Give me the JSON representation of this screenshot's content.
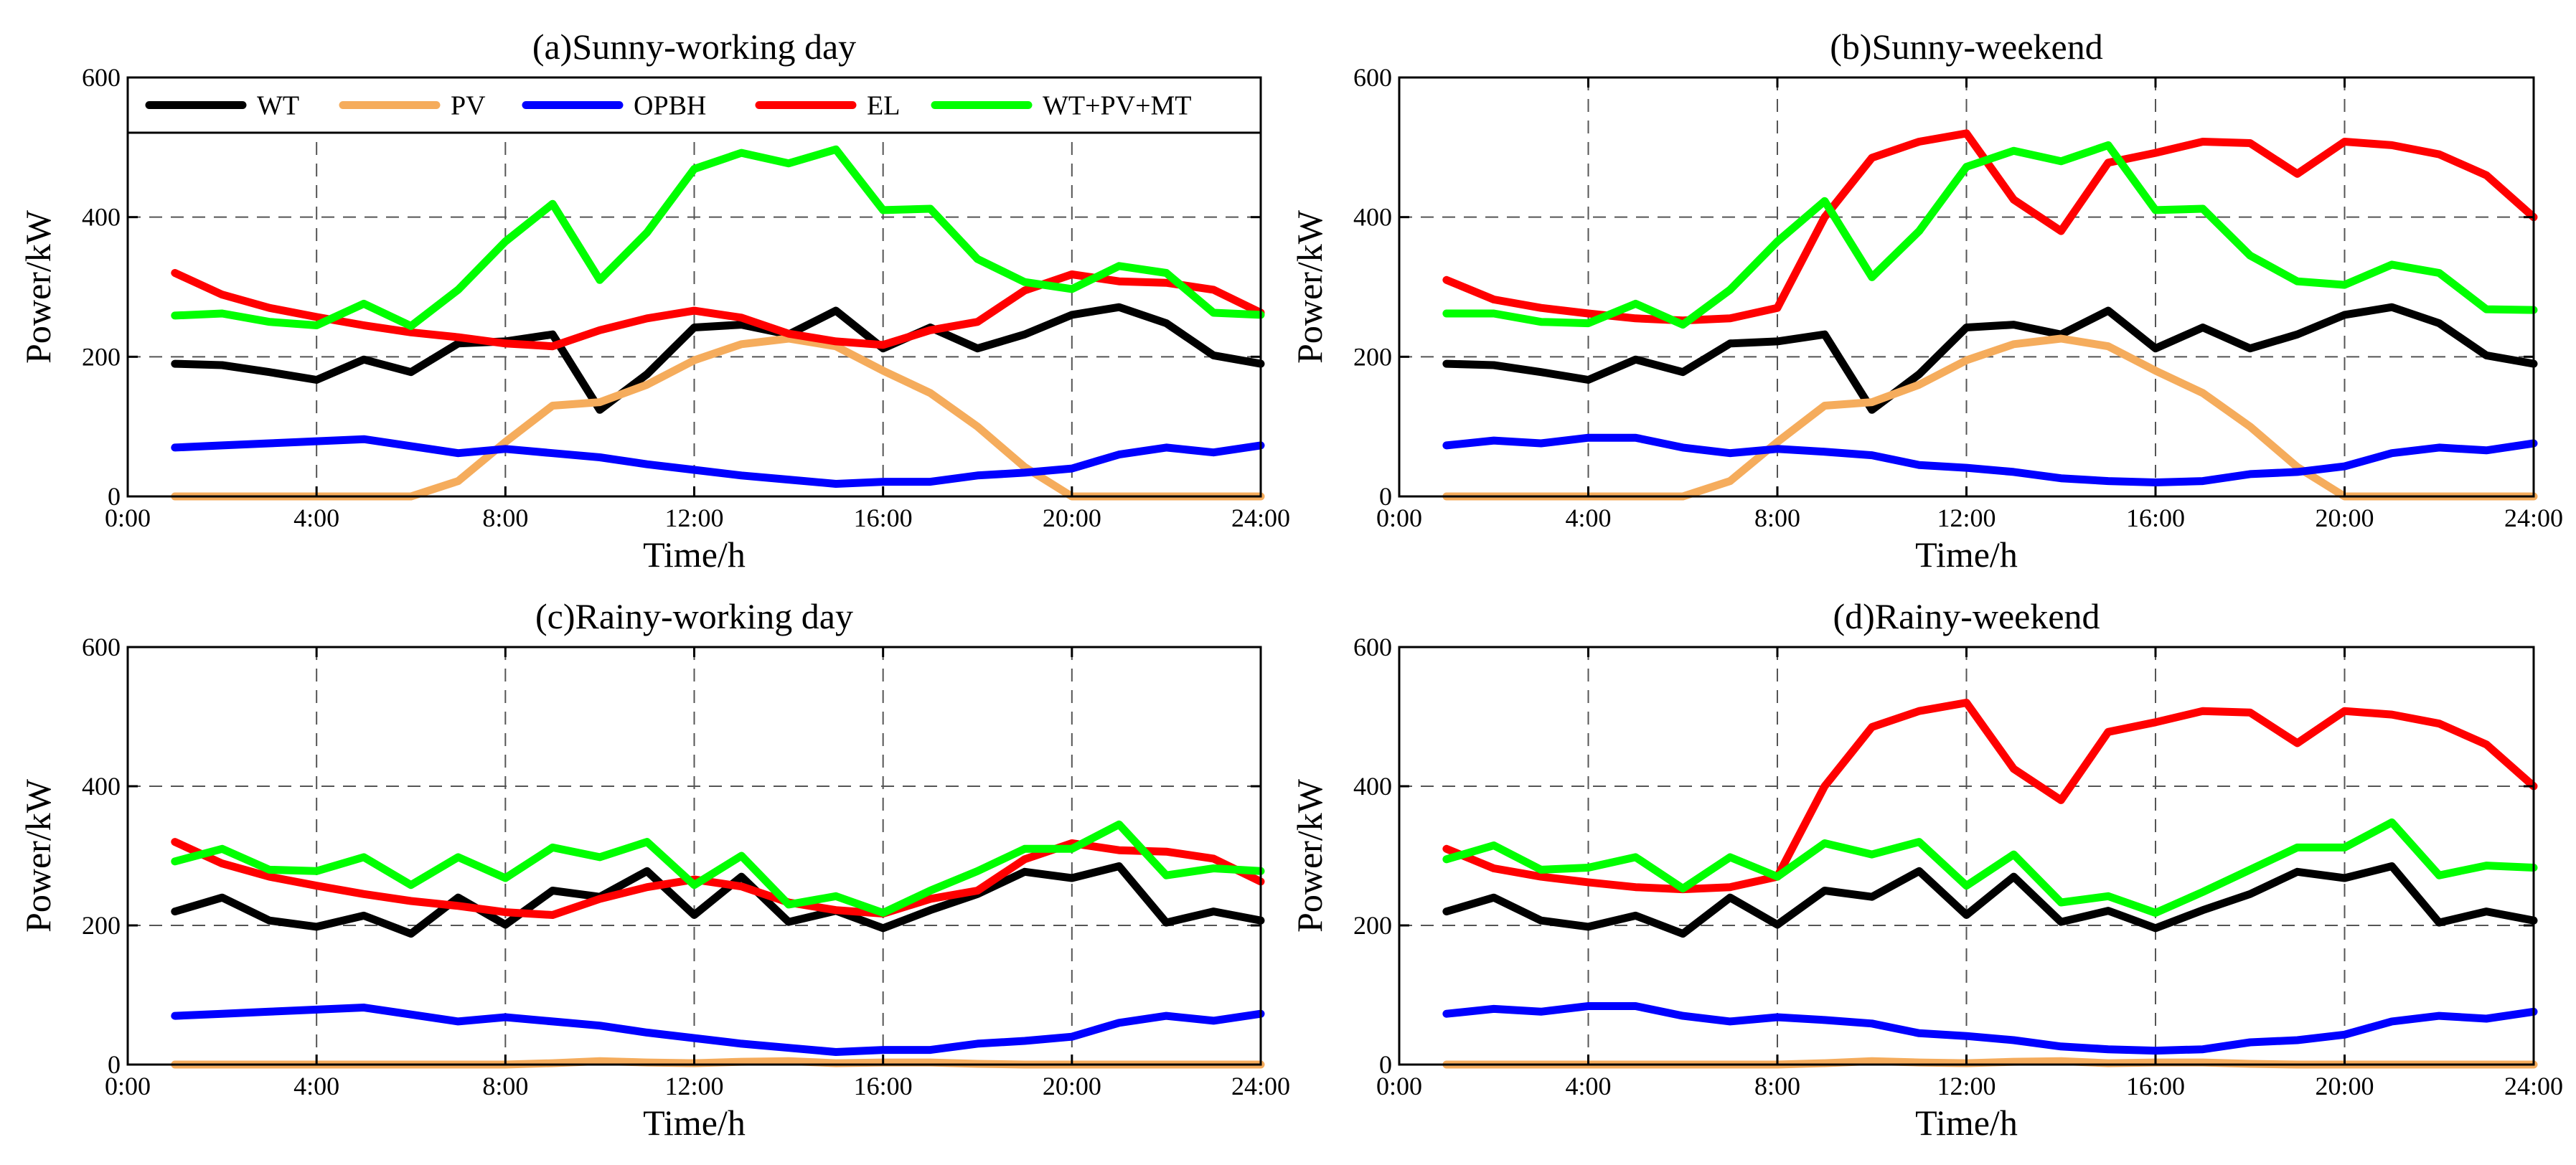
{
  "legend": {
    "entries": [
      {
        "label": "WT",
        "color": "#000000"
      },
      {
        "label": "PV",
        "color": "#f5ac5c"
      },
      {
        "label": "OPBH",
        "color": "#0000ff"
      },
      {
        "label": "EL",
        "color": "#ff0000"
      },
      {
        "label": "WT+PV+MT",
        "color": "#00ff00"
      }
    ]
  },
  "chart_data": [
    {
      "type": "line",
      "title": "(a)Sunny-working day",
      "xlabel": "Time/h",
      "ylabel": "Power/kW",
      "xlim": [
        0,
        24
      ],
      "ylim": [
        0,
        600
      ],
      "xticks": [
        "0:00",
        "4:00",
        "8:00",
        "12:00",
        "16:00",
        "20:00",
        "24:00"
      ],
      "yticks": [
        "0",
        "200",
        "400",
        "600"
      ],
      "grid": true,
      "legend": "top",
      "x": [
        1,
        2,
        3,
        4,
        5,
        6,
        7,
        8,
        9,
        10,
        11,
        12,
        13,
        14,
        15,
        16,
        17,
        18,
        19,
        20,
        21,
        22,
        23,
        24
      ],
      "series": [
        {
          "name": "WT",
          "color": "#000000",
          "values": [
            190,
            188,
            178,
            167,
            196,
            178,
            219,
            222,
            232,
            124,
            175,
            242,
            246,
            232,
            266,
            212,
            242,
            212,
            232,
            260,
            271,
            248,
            202,
            190
          ]
        },
        {
          "name": "PV",
          "color": "#f5ac5c",
          "values": [
            0,
            0,
            0,
            0,
            0,
            0,
            22,
            78,
            130,
            135,
            160,
            195,
            218,
            226,
            215,
            180,
            148,
            100,
            42,
            0,
            0,
            0,
            0,
            0
          ]
        },
        {
          "name": "OPBH",
          "color": "#0000ff",
          "values": [
            70,
            73,
            76,
            79,
            82,
            72,
            62,
            68,
            62,
            56,
            46,
            38,
            30,
            24,
            18,
            21,
            21,
            30,
            34,
            40,
            60,
            70,
            63,
            73
          ]
        },
        {
          "name": "EL",
          "color": "#ff0000",
          "values": [
            320,
            289,
            270,
            257,
            245,
            235,
            228,
            219,
            215,
            238,
            255,
            266,
            256,
            233,
            222,
            217,
            238,
            250,
            295,
            318,
            308,
            306,
            296,
            263
          ]
        },
        {
          "name": "WT+PV+MT",
          "color": "#00ff00",
          "values": [
            259,
            262,
            250,
            245,
            276,
            244,
            296,
            365,
            419,
            310,
            378,
            469,
            492,
            477,
            497,
            410,
            412,
            340,
            307,
            297,
            330,
            320,
            263,
            260
          ]
        }
      ]
    },
    {
      "type": "line",
      "title": "(b)Sunny-weekend",
      "xlabel": "Time/h",
      "ylabel": "Power/kW",
      "xlim": [
        0,
        24
      ],
      "ylim": [
        0,
        600
      ],
      "xticks": [
        "0:00",
        "4:00",
        "8:00",
        "12:00",
        "16:00",
        "20:00",
        "24:00"
      ],
      "yticks": [
        "0",
        "200",
        "400",
        "600"
      ],
      "grid": true,
      "x": [
        1,
        2,
        3,
        4,
        5,
        6,
        7,
        8,
        9,
        10,
        11,
        12,
        13,
        14,
        15,
        16,
        17,
        18,
        19,
        20,
        21,
        22,
        23,
        24
      ],
      "series": [
        {
          "name": "WT",
          "color": "#000000",
          "values": [
            190,
            188,
            178,
            167,
            196,
            178,
            219,
            222,
            232,
            124,
            175,
            242,
            246,
            232,
            266,
            212,
            242,
            212,
            232,
            260,
            271,
            248,
            202,
            190
          ]
        },
        {
          "name": "PV",
          "color": "#f5ac5c",
          "values": [
            0,
            0,
            0,
            0,
            0,
            0,
            22,
            78,
            130,
            135,
            160,
            195,
            218,
            226,
            215,
            180,
            148,
            100,
            42,
            0,
            0,
            0,
            0,
            0
          ]
        },
        {
          "name": "OPBH",
          "color": "#0000ff",
          "values": [
            73,
            80,
            76,
            84,
            84,
            70,
            62,
            68,
            64,
            59,
            45,
            41,
            35,
            26,
            22,
            20,
            22,
            32,
            35,
            43,
            62,
            70,
            66,
            76
          ]
        },
        {
          "name": "EL",
          "color": "#ff0000",
          "values": [
            310,
            282,
            270,
            262,
            255,
            252,
            255,
            270,
            400,
            485,
            508,
            520,
            425,
            380,
            478,
            492,
            508,
            506,
            462,
            508,
            503,
            490,
            460,
            400
          ]
        },
        {
          "name": "WT+PV+MT",
          "color": "#00ff00",
          "values": [
            262,
            262,
            250,
            248,
            276,
            246,
            296,
            365,
            423,
            314,
            380,
            472,
            495,
            480,
            503,
            410,
            412,
            345,
            308,
            303,
            332,
            320,
            268,
            267
          ]
        }
      ]
    },
    {
      "type": "line",
      "title": "(c)Rainy-working day",
      "xlabel": "Time/h",
      "ylabel": "Power/kW",
      "xlim": [
        0,
        24
      ],
      "ylim": [
        0,
        600
      ],
      "xticks": [
        "0:00",
        "4:00",
        "8:00",
        "12:00",
        "16:00",
        "20:00",
        "24:00"
      ],
      "yticks": [
        "0",
        "200",
        "400",
        "600"
      ],
      "grid": true,
      "x": [
        1,
        2,
        3,
        4,
        5,
        6,
        7,
        8,
        9,
        10,
        11,
        12,
        13,
        14,
        15,
        16,
        17,
        18,
        19,
        20,
        21,
        22,
        23,
        24
      ],
      "series": [
        {
          "name": "WT",
          "color": "#000000",
          "values": [
            220,
            240,
            207,
            198,
            214,
            188,
            240,
            201,
            250,
            241,
            278,
            215,
            270,
            205,
            221,
            196,
            222,
            245,
            277,
            268,
            285,
            204,
            220,
            207
          ]
        },
        {
          "name": "PV",
          "color": "#f5ac5c",
          "values": [
            0,
            0,
            0,
            0,
            0,
            0,
            0,
            0,
            2,
            5,
            3,
            2,
            4,
            5,
            2,
            3,
            3,
            1,
            0,
            0,
            0,
            0,
            0,
            0
          ]
        },
        {
          "name": "OPBH",
          "color": "#0000ff",
          "values": [
            70,
            73,
            76,
            79,
            82,
            72,
            62,
            68,
            62,
            56,
            46,
            38,
            30,
            24,
            18,
            21,
            21,
            30,
            34,
            40,
            60,
            70,
            63,
            73
          ]
        },
        {
          "name": "EL",
          "color": "#ff0000",
          "values": [
            320,
            289,
            270,
            257,
            245,
            235,
            228,
            219,
            215,
            238,
            255,
            266,
            256,
            233,
            222,
            217,
            238,
            250,
            295,
            318,
            308,
            306,
            296,
            263
          ]
        },
        {
          "name": "WT+PV+MT",
          "color": "#00ff00",
          "values": [
            292,
            310,
            280,
            278,
            298,
            258,
            298,
            268,
            312,
            298,
            320,
            258,
            300,
            230,
            242,
            218,
            250,
            278,
            310,
            310,
            345,
            272,
            282,
            278
          ]
        }
      ]
    },
    {
      "type": "line",
      "title": "(d)Rainy-weekend",
      "xlabel": "Time/h",
      "ylabel": "Power/kW",
      "xlim": [
        0,
        24
      ],
      "ylim": [
        0,
        600
      ],
      "xticks": [
        "0:00",
        "4:00",
        "8:00",
        "12:00",
        "16:00",
        "20:00",
        "24:00"
      ],
      "yticks": [
        "0",
        "200",
        "400",
        "600"
      ],
      "grid": true,
      "x": [
        1,
        2,
        3,
        4,
        5,
        6,
        7,
        8,
        9,
        10,
        11,
        12,
        13,
        14,
        15,
        16,
        17,
        18,
        19,
        20,
        21,
        22,
        23,
        24
      ],
      "series": [
        {
          "name": "WT",
          "color": "#000000",
          "values": [
            220,
            240,
            207,
            198,
            214,
            188,
            240,
            201,
            250,
            241,
            278,
            215,
            270,
            205,
            221,
            196,
            222,
            245,
            277,
            268,
            285,
            204,
            220,
            207
          ]
        },
        {
          "name": "PV",
          "color": "#f5ac5c",
          "values": [
            0,
            0,
            0,
            0,
            0,
            0,
            0,
            0,
            2,
            5,
            3,
            2,
            4,
            5,
            2,
            3,
            3,
            1,
            0,
            0,
            0,
            0,
            0,
            0
          ]
        },
        {
          "name": "OPBH",
          "color": "#0000ff",
          "values": [
            73,
            80,
            76,
            84,
            84,
            70,
            62,
            68,
            64,
            59,
            45,
            41,
            35,
            26,
            22,
            20,
            22,
            32,
            35,
            43,
            62,
            70,
            66,
            76
          ]
        },
        {
          "name": "EL",
          "color": "#ff0000",
          "values": [
            310,
            282,
            270,
            262,
            255,
            252,
            255,
            270,
            400,
            485,
            508,
            520,
            425,
            380,
            478,
            492,
            508,
            506,
            462,
            508,
            503,
            490,
            460,
            400
          ]
        },
        {
          "name": "WT+PV+MT",
          "color": "#00ff00",
          "values": [
            295,
            315,
            280,
            283,
            298,
            253,
            298,
            270,
            318,
            302,
            320,
            257,
            302,
            233,
            242,
            218,
            248,
            280,
            312,
            312,
            348,
            272,
            286,
            283
          ]
        }
      ]
    }
  ]
}
